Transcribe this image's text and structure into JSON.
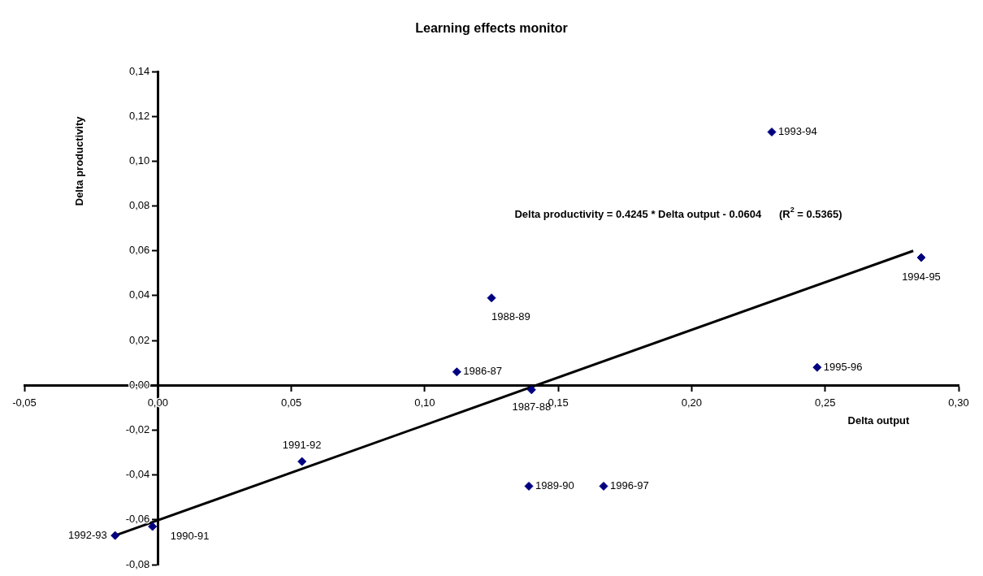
{
  "chart_data": {
    "type": "scatter",
    "title": "Learning effects monitor",
    "xlabel": "Delta output",
    "ylabel": "Delta productivity",
    "annotations": [
      "Delta productivity = 0.4245 * Delta output - 0.0604      (R$^{2}$ = 0.5365)"
    ],
    "marker": "diamond",
    "grid": false,
    "legend": false,
    "xlim": [
      -0.05,
      0.3
    ],
    "ylim": [
      -0.08,
      0.14
    ],
    "xticks": [
      {
        "value": -0.05,
        "label": "-0,05"
      },
      {
        "value": 0,
        "label": "0,00"
      },
      {
        "value": 0.05,
        "label": "0,05"
      },
      {
        "value": 0.1,
        "label": "0,10"
      },
      {
        "value": 0.15,
        "label": "0,15"
      },
      {
        "value": 0.2,
        "label": "0,20"
      },
      {
        "value": 0.25,
        "label": "0,25"
      },
      {
        "value": 0.3,
        "label": "0,30"
      }
    ],
    "yticks": [
      {
        "value": -0.08,
        "label": "-0,08"
      },
      {
        "value": -0.06,
        "label": "-0,06"
      },
      {
        "value": -0.04,
        "label": "-0,04"
      },
      {
        "value": -0.02,
        "label": "-0,02"
      },
      {
        "value": 0,
        "label": "0,00"
      },
      {
        "value": 0.02,
        "label": "0,02"
      },
      {
        "value": 0.04,
        "label": "0,04"
      },
      {
        "value": 0.06,
        "label": "0,06"
      },
      {
        "value": 0.08,
        "label": "0,08"
      },
      {
        "value": 0.1,
        "label": "0,10"
      },
      {
        "value": 0.12,
        "label": "0,12"
      },
      {
        "value": 0.14,
        "label": "0,14"
      }
    ],
    "series": [
      {
        "color": "#000080",
        "x": [
          0.112,
          0.14,
          0.125,
          0.139,
          -0.002,
          0.054,
          -0.016,
          0.23,
          0.286,
          0.247,
          0.167
        ],
        "values": [
          0.006,
          -0.002,
          0.039,
          -0.045,
          -0.063,
          -0.034,
          -0.067,
          0.113,
          0.057,
          0.008,
          -0.045
        ],
        "value_labels": [
          "1986-87",
          "1987-88",
          "1988-89",
          "1989-90",
          "1990-91",
          "1991-92",
          "1992-93",
          "1993-94",
          "1994-95",
          "1995-96",
          "1996-97"
        ]
      },
      {
        "type": "line",
        "marker": "none",
        "color": "#000000",
        "x": [
          -0.016,
          0.283
        ],
        "values": [
          -0.067,
          0.06
        ]
      }
    ]
  }
}
